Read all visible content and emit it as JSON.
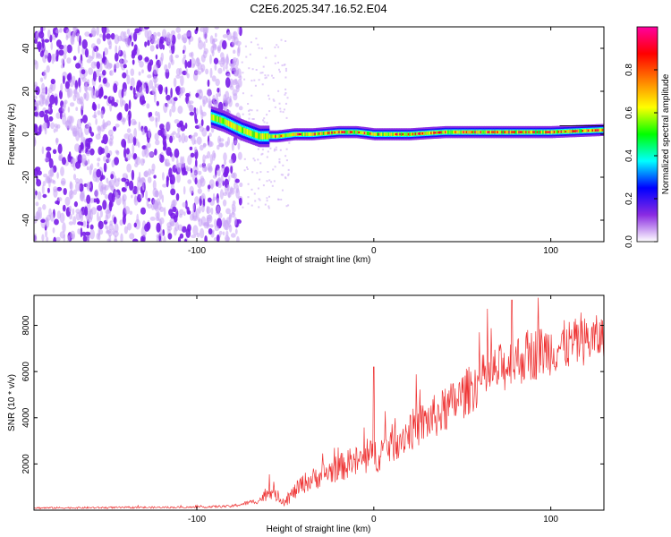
{
  "figure": {
    "title": "C2E6.2025.347.16.52.E04"
  },
  "chart_data": [
    {
      "type": "heatmap",
      "xlabel": "Height of straight line (km)",
      "ylabel": "Frequency (Hz)",
      "xlim": [
        -192,
        130
      ],
      "ylim": [
        -50,
        50
      ],
      "xticks": [
        -100,
        0,
        100
      ],
      "xtick_labels": [
        "-100",
        "0",
        "100"
      ],
      "yticks": [
        -40,
        -20,
        0,
        20,
        40
      ],
      "ytick_labels": [
        "-40",
        "-20",
        "0",
        "20",
        "40"
      ],
      "colorbar": {
        "label": "Normalized spectral amplitude",
        "range": [
          0,
          1
        ],
        "ticks": [
          0.0,
          0.2,
          0.4,
          0.6,
          0.8
        ],
        "tick_labels": [
          "0.0",
          "0.2",
          "0.4",
          "0.6",
          "0.8"
        ],
        "colormap": [
          "#ffffff",
          "#8a2be2",
          "#0000ff",
          "#00ffff",
          "#00ff00",
          "#ffff00",
          "#ff8000",
          "#ff0000",
          "#ff00a0"
        ]
      },
      "ridge": {
        "description": "Dominant frequency band",
        "x": [
          -92,
          -85,
          -75,
          -65,
          -55,
          -45,
          -35,
          -20,
          -10,
          0,
          20,
          40,
          60,
          80,
          100,
          130
        ],
        "y": [
          8,
          6,
          2,
          -1,
          -1,
          0,
          0,
          1,
          1,
          0,
          0,
          1,
          1,
          1,
          1,
          2
        ]
      },
      "noise_region_x": [
        -192,
        -75
      ],
      "sparse_noise_region_x": [
        -75,
        -48
      ]
    },
    {
      "type": "line",
      "xlabel": "Height of straight line (km)",
      "ylabel": "SNR (10 * v/v)",
      "xlim": [
        -192,
        130
      ],
      "ylim": [
        0,
        9300
      ],
      "xticks": [
        -100,
        0,
        100
      ],
      "xtick_labels": [
        "-100",
        "0",
        "100"
      ],
      "yticks": [
        2000,
        4000,
        6000,
        8000
      ],
      "ytick_labels": [
        "2000",
        "4000",
        "6000",
        "8000"
      ],
      "series": [
        {
          "name": "SNR",
          "color": "#ee3333",
          "trend_x": [
            -192,
            -100,
            -80,
            -65,
            -58,
            -55,
            -50,
            -40,
            -20,
            0,
            20,
            40,
            60,
            80,
            100,
            130
          ],
          "trend_y": [
            100,
            130,
            180,
            420,
            900,
            600,
            420,
            1200,
            1900,
            2400,
            3500,
            4400,
            5700,
            6600,
            7100,
            7600
          ],
          "spread_y": [
            80,
            80,
            120,
            250,
            800,
            400,
            500,
            900,
            1200,
            1600,
            1800,
            2000,
            2200,
            2300,
            2300,
            2000
          ],
          "peaks": [
            {
              "x": -59,
              "y": 1550
            },
            {
              "x": 0,
              "y": 6200
            },
            {
              "x": 78,
              "y": 9100
            },
            {
              "x": 93,
              "y": 9200
            }
          ]
        }
      ]
    }
  ]
}
